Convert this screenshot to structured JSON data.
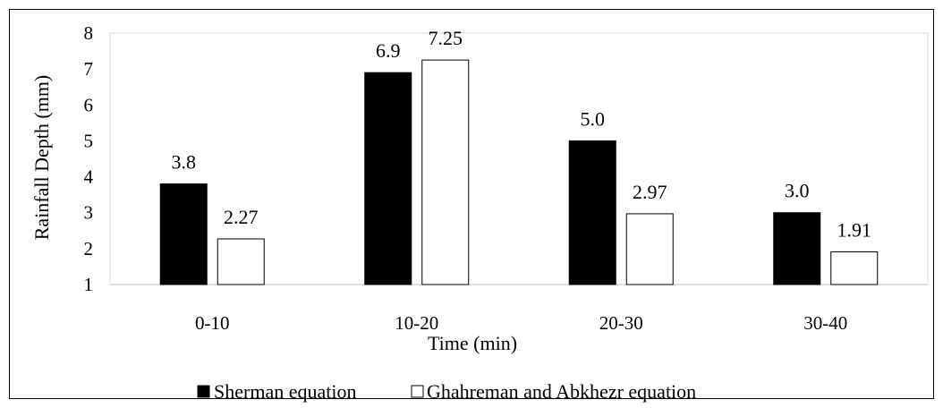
{
  "chart_data": {
    "type": "bar",
    "title": "",
    "xlabel": "Time (min)",
    "ylabel": "Rainfall Depth (mm)",
    "ylim": [
      1,
      8
    ],
    "yticks": [
      "1",
      "2",
      "3",
      "4",
      "5",
      "6",
      "7",
      "8"
    ],
    "categories": [
      "0-10",
      "10-20",
      "20-30",
      "30-40"
    ],
    "series": [
      {
        "name": "Sherman equation",
        "values": [
          3.8,
          6.9,
          5.0,
          3.0
        ],
        "labels": [
          "3.8",
          "6.9",
          "5.0",
          "3.0"
        ],
        "fill": "#000000"
      },
      {
        "name": "Ghahreman and Abkhezr equation",
        "values": [
          2.27,
          7.25,
          2.97,
          1.91
        ],
        "labels": [
          "2.27",
          "7.25",
          "2.97",
          "1.91"
        ],
        "fill": "#ffffff"
      }
    ],
    "grid": false,
    "legend_position": "bottom"
  }
}
